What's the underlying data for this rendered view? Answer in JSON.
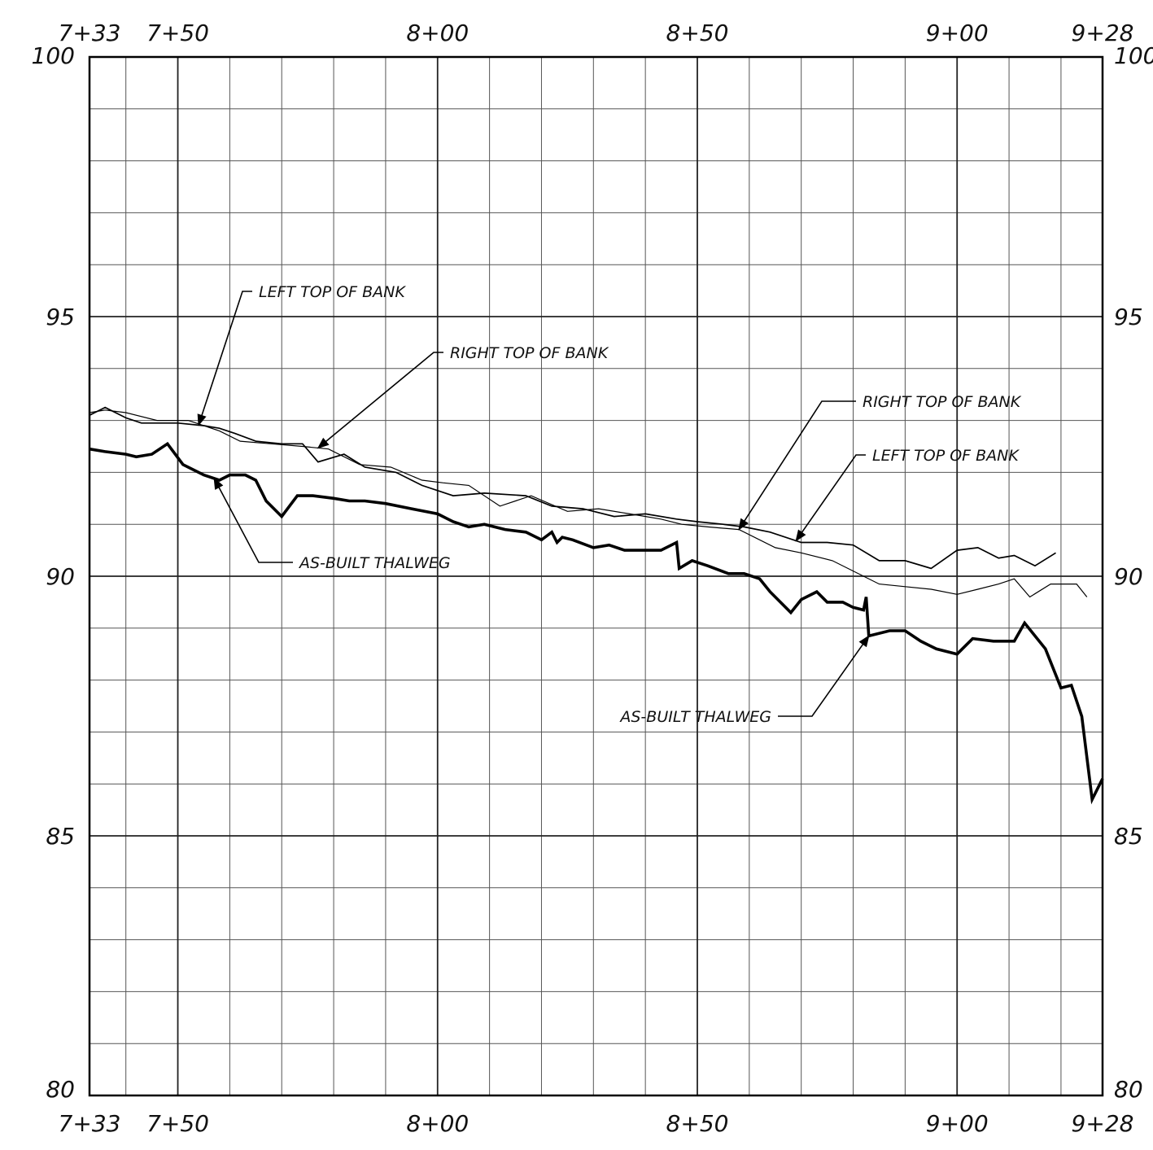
{
  "chart_data": {
    "type": "line",
    "title": "",
    "xlabel": "",
    "ylabel": "",
    "xlim": [
      733,
      928
    ],
    "ylim": [
      80,
      100
    ],
    "grid": true,
    "x_ticks": [
      {
        "value": 733,
        "label": "7+33"
      },
      {
        "value": 750,
        "label": "7+50"
      },
      {
        "value": 800,
        "label": "8+00"
      },
      {
        "value": 850,
        "label": "8+50"
      },
      {
        "value": 900,
        "label": "9+00"
      },
      {
        "value": 928,
        "label": "9+28"
      }
    ],
    "y_ticks": [
      {
        "value": 80,
        "label": "80"
      },
      {
        "value": 85,
        "label": "85"
      },
      {
        "value": 90,
        "label": "90"
      },
      {
        "value": 95,
        "label": "95"
      },
      {
        "value": 100,
        "label": "100"
      }
    ],
    "series": [
      {
        "name": "LEFT TOP OF BANK",
        "weight": "medium",
        "x": [
          733,
          736,
          740,
          743,
          750,
          755,
          758,
          761,
          765,
          770,
          774,
          777,
          782,
          786,
          792,
          797,
          803,
          809,
          817,
          822,
          828,
          834,
          840,
          846,
          850,
          855,
          859,
          864,
          870,
          875,
          880,
          885,
          890,
          895,
          900,
          904,
          908,
          911,
          915,
          919
        ],
        "y": [
          93.1,
          93.25,
          93.05,
          92.95,
          92.95,
          92.9,
          92.85,
          92.75,
          92.6,
          92.55,
          92.55,
          92.2,
          92.35,
          92.1,
          92.0,
          91.75,
          91.55,
          91.6,
          91.55,
          91.35,
          91.3,
          91.15,
          91.2,
          91.1,
          91.05,
          91.0,
          90.95,
          90.85,
          90.65,
          90.65,
          90.6,
          90.3,
          90.3,
          90.15,
          90.5,
          90.55,
          90.35,
          90.4,
          90.2,
          90.45
        ]
      },
      {
        "name": "RIGHT TOP OF BANK",
        "weight": "thin",
        "x": [
          733,
          736,
          740,
          746,
          752,
          758,
          762,
          768,
          774,
          779,
          785,
          791,
          797,
          801,
          806,
          812,
          818,
          825,
          831,
          837,
          843,
          847,
          852,
          858,
          865,
          870,
          876,
          880,
          885,
          890,
          895,
          900,
          904,
          908,
          911,
          914,
          918,
          923,
          925
        ],
        "y": [
          93.15,
          93.2,
          93.15,
          93.0,
          93.0,
          92.8,
          92.6,
          92.55,
          92.5,
          92.45,
          92.15,
          92.1,
          91.85,
          91.8,
          91.75,
          91.35,
          91.55,
          91.25,
          91.3,
          91.2,
          91.1,
          91.0,
          90.95,
          90.9,
          90.55,
          90.45,
          90.3,
          90.1,
          89.85,
          89.8,
          89.75,
          89.65,
          89.75,
          89.85,
          89.95,
          89.6,
          89.85,
          89.85,
          89.6
        ]
      },
      {
        "name": "AS-BUILT THALWEG",
        "weight": "heavy",
        "x": [
          733,
          736,
          740,
          742,
          745,
          748,
          751,
          755,
          758,
          760,
          763,
          765,
          767,
          770,
          773,
          776,
          780,
          783,
          786,
          790,
          795,
          800,
          803,
          806,
          809,
          813,
          817,
          820,
          822,
          823,
          824,
          826,
          830,
          833,
          836,
          838,
          843,
          846,
          846.5,
          849,
          852,
          856,
          859,
          862,
          864,
          868,
          870,
          873,
          875,
          878,
          880,
          882,
          882.5,
          883,
          887,
          890,
          893,
          896,
          900,
          903,
          907,
          911,
          913,
          917,
          920,
          922,
          924,
          926,
          928
        ],
        "y": [
          92.45,
          92.4,
          92.35,
          92.3,
          92.35,
          92.55,
          92.15,
          91.95,
          91.85,
          91.95,
          91.95,
          91.85,
          91.45,
          91.15,
          91.55,
          91.55,
          91.5,
          91.45,
          91.45,
          91.4,
          91.3,
          91.2,
          91.05,
          90.95,
          91.0,
          90.9,
          90.85,
          90.7,
          90.85,
          90.65,
          90.75,
          90.7,
          90.55,
          90.6,
          90.5,
          90.5,
          90.5,
          90.65,
          90.15,
          90.3,
          90.2,
          90.05,
          90.05,
          89.95,
          89.7,
          89.3,
          89.55,
          89.7,
          89.5,
          89.5,
          89.4,
          89.35,
          89.6,
          88.85,
          88.95,
          88.95,
          88.75,
          88.6,
          88.5,
          88.8,
          88.75,
          88.75,
          89.1,
          88.6,
          87.85,
          87.9,
          87.3,
          85.7,
          86.1
        ]
      }
    ],
    "annotations": [
      {
        "text": "LEFT TOP OF BANK",
        "points_to": "LEFT TOP OF BANK",
        "at_x": 754
      },
      {
        "text": "RIGHT TOP OF BANK",
        "points_to": "RIGHT TOP OF BANK",
        "at_x": 777
      },
      {
        "text": "AS-BUILT THALWEG",
        "points_to": "AS-BUILT THALWEG",
        "at_x": 757
      },
      {
        "text": "RIGHT TOP OF BANK",
        "points_to": "RIGHT TOP OF BANK",
        "at_x": 858
      },
      {
        "text": "LEFT TOP OF BANK",
        "points_to": "LEFT TOP OF BANK",
        "at_x": 869
      },
      {
        "text": "AS-BUILT THALWEG",
        "points_to": "AS-BUILT THALWEG",
        "at_x": 883
      }
    ]
  }
}
